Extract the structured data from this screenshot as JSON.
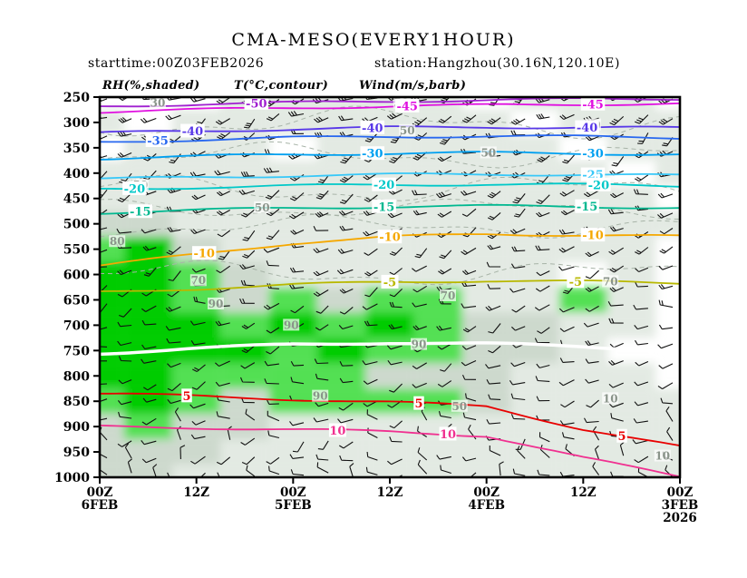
{
  "header": {
    "title": "CMA-MESO(EVERY1HOUR)",
    "starttime": "starttime:00Z03FEB2026",
    "station": "station:Hangzhou(30.16N,120.10E)"
  },
  "legend": {
    "rh": "RH(%,shaded)",
    "temp": "T(°C,contour)",
    "wind": "Wind(m/s,barb)"
  },
  "chart_data": {
    "type": "heatmap",
    "title": "CMA-MESO(EVERY1HOUR)",
    "subtitle_left": "starttime:00Z03FEB2026",
    "subtitle_right": "station:Hangzhou(30.16N,120.10E)",
    "legend_entries": [
      "RH(%,shaded)",
      "T(°C,contour)",
      "Wind(m/s,barb)"
    ],
    "y_axis": {
      "unit": "hPa",
      "min": 250,
      "max": 1000,
      "ticks": [
        250,
        300,
        350,
        400,
        450,
        500,
        550,
        600,
        650,
        700,
        750,
        800,
        850,
        900,
        950,
        1000
      ]
    },
    "x_axis": {
      "direction": "time runs right-to-left from start 00Z03FEB2026",
      "ticks": [
        {
          "time": "00Z",
          "date": "6FEB"
        },
        {
          "time": "12Z"
        },
        {
          "time": "00Z",
          "date": "5FEB"
        },
        {
          "time": "12Z"
        },
        {
          "time": "00Z",
          "date": "4FEB"
        },
        {
          "time": "12Z"
        },
        {
          "time": "00Z",
          "date": "3FEB",
          "year": "2026"
        }
      ]
    },
    "rh_percent": {
      "columns": 13,
      "pressures": [
        250,
        300,
        350,
        400,
        450,
        500,
        550,
        600,
        650,
        700,
        750,
        800,
        850,
        900,
        950,
        1000
      ],
      "grid": [
        [
          45,
          40,
          45,
          55,
          60,
          55,
          60,
          55,
          45,
          55,
          60,
          50,
          45
        ],
        [
          50,
          45,
          55,
          60,
          55,
          50,
          55,
          60,
          50,
          45,
          55,
          60,
          55
        ],
        [
          45,
          55,
          60,
          55,
          45,
          55,
          60,
          55,
          50,
          55,
          45,
          55,
          60
        ],
        [
          55,
          60,
          55,
          50,
          55,
          60,
          50,
          55,
          60,
          55,
          50,
          45,
          55
        ],
        [
          60,
          55,
          50,
          55,
          60,
          55,
          60,
          50,
          55,
          60,
          55,
          50,
          45
        ],
        [
          85,
          80,
          65,
          55,
          60,
          55,
          50,
          55,
          60,
          55,
          50,
          55,
          50
        ],
        [
          93,
          96,
          80,
          60,
          55,
          60,
          55,
          50,
          55,
          50,
          55,
          50,
          45
        ],
        [
          96,
          96,
          90,
          72,
          65,
          60,
          65,
          60,
          55,
          50,
          45,
          50,
          40
        ],
        [
          96,
          97,
          93,
          85,
          92,
          88,
          93,
          90,
          65,
          55,
          93,
          55,
          45
        ],
        [
          97,
          97,
          96,
          93,
          96,
          93,
          96,
          93,
          88,
          70,
          55,
          50,
          45
        ],
        [
          97,
          98,
          96,
          96,
          93,
          96,
          93,
          92,
          88,
          72,
          55,
          45,
          40
        ],
        [
          96,
          97,
          93,
          92,
          93,
          92,
          88,
          82,
          78,
          68,
          55,
          50,
          45
        ],
        [
          93,
          96,
          92,
          88,
          93,
          92,
          93,
          92,
          88,
          62,
          55,
          50,
          55
        ],
        [
          88,
          92,
          82,
          72,
          68,
          62,
          68,
          62,
          55,
          50,
          55,
          60,
          55
        ],
        [
          78,
          82,
          72,
          62,
          55,
          60,
          55,
          60,
          55,
          60,
          55,
          62,
          65
        ],
        [
          72,
          78,
          68,
          60,
          55,
          58,
          55,
          55,
          58,
          55,
          60,
          63,
          68
        ]
      ]
    },
    "rh_shade_levels": [
      {
        "min": 50,
        "color": "#e3eae3"
      },
      {
        "min": 70,
        "color": "#cdd9cd"
      },
      {
        "min": 90,
        "color": "#52e052"
      },
      {
        "min": 95,
        "color": "#00cc00"
      }
    ],
    "rh_contour_levels": [
      50,
      70,
      90
    ],
    "rh_labels": [
      {
        "v": 30,
        "t": 0.1,
        "p": 262
      },
      {
        "v": 50,
        "t": 0.52,
        "p": 262
      },
      {
        "v": 50,
        "t": 0.53,
        "p": 316
      },
      {
        "v": 50,
        "t": 0.85,
        "p": 305
      },
      {
        "v": 50,
        "t": 0.67,
        "p": 360
      },
      {
        "v": 50,
        "t": 0.07,
        "p": 424
      },
      {
        "v": 50,
        "t": 0.28,
        "p": 468
      },
      {
        "v": 80,
        "t": 0.03,
        "p": 535
      },
      {
        "v": 70,
        "t": 0.17,
        "p": 612
      },
      {
        "v": 70,
        "t": 0.88,
        "p": 614
      },
      {
        "v": 90,
        "t": 0.2,
        "p": 658
      },
      {
        "v": 70,
        "t": 0.6,
        "p": 642
      },
      {
        "v": 90,
        "t": 0.33,
        "p": 700
      },
      {
        "v": 90,
        "t": 0.55,
        "p": 738
      },
      {
        "v": 90,
        "t": 0.38,
        "p": 840
      },
      {
        "v": 50,
        "t": 0.62,
        "p": 860
      },
      {
        "v": 10,
        "t": 0.88,
        "p": 845
      },
      {
        "v": 10,
        "t": 0.97,
        "p": 958
      }
    ],
    "rh_contour_lines": [
      {
        "base": 300,
        "amp": 22,
        "phase": 0.5
      },
      {
        "base": 365,
        "amp": 18,
        "phase": 2.1
      },
      {
        "base": 432,
        "amp": 20,
        "phase": 4.0
      },
      {
        "base": 505,
        "amp": 16,
        "phase": 1.2
      },
      {
        "base": 470,
        "amp": 14,
        "phase": 5.1
      },
      {
        "base": 598,
        "amp": 18,
        "phase": 3.3
      }
    ],
    "temp_contours": [
      {
        "level": -50,
        "color": "#a020d0",
        "p": [
          268,
          264,
          261,
          258,
          256,
          254,
          253
        ],
        "labels": [
          0.27
        ]
      },
      {
        "level": -45,
        "color": "#e010e0",
        "p": [
          279,
          275,
          271,
          268,
          266,
          264,
          263
        ],
        "labels": [
          0.53,
          0.85
        ]
      },
      {
        "level": -40,
        "color": "#5838e8",
        "p": [
          321,
          317,
          313,
          310,
          309,
          310,
          311
        ],
        "labels": [
          0.16,
          0.47,
          0.84
        ]
      },
      {
        "level": -35,
        "color": "#2868f0",
        "p": [
          339,
          334,
          330,
          328,
          327,
          328,
          330
        ],
        "labels": [
          0.1
        ]
      },
      {
        "level": -30,
        "color": "#00a0f0",
        "p": [
          371,
          367,
          363,
          361,
          360,
          361,
          363
        ],
        "labels": [
          0.47,
          0.85
        ]
      },
      {
        "level": -25,
        "color": "#38c8f8",
        "p": [
          412,
          408,
          405,
          403,
          402,
          403,
          405
        ],
        "labels": [
          0.85
        ]
      },
      {
        "level": -20,
        "color": "#00c8c8",
        "p": [
          432,
          428,
          425,
          423,
          422,
          423,
          425
        ],
        "labels": [
          0.06,
          0.49,
          0.86
        ]
      },
      {
        "level": -15,
        "color": "#00b890",
        "p": [
          478,
          473,
          469,
          466,
          465,
          466,
          468
        ],
        "labels": [
          0.07,
          0.49,
          0.84
        ]
      },
      {
        "level": -10,
        "color": "#f5a800",
        "p": [
          583,
          560,
          538,
          526,
          520,
          522,
          525
        ],
        "labels": [
          0.18,
          0.5,
          0.85
        ]
      },
      {
        "level": -5,
        "color": "#b8b800",
        "p": [
          635,
          628,
          620,
          615,
          612,
          614,
          617
        ],
        "labels": [
          0.5,
          0.82
        ]
      },
      {
        "level": 0,
        "color": "#ffffff",
        "p": [
          755,
          746,
          738,
          734,
          737,
          742,
          750
        ],
        "labels": []
      },
      {
        "level": 5,
        "color": "#e80000",
        "p": [
          835,
          840,
          846,
          852,
          860,
          905,
          940
        ],
        "labels": [
          0.15,
          0.55,
          0.9
        ]
      },
      {
        "level": 10,
        "color": "#f03090",
        "p": [
          900,
          902,
          906,
          910,
          918,
          962,
          998
        ],
        "labels": [
          0.41,
          0.6
        ]
      }
    ],
    "wind": {
      "unit": "m/s",
      "levels": [
        {
          "p": 250,
          "speed": 22,
          "angle": 150
        },
        {
          "p": 288,
          "speed": 22,
          "angle": 152
        },
        {
          "p": 325,
          "speed": 20,
          "angle": 150
        },
        {
          "p": 362,
          "speed": 20,
          "angle": 153
        },
        {
          "p": 400,
          "speed": 18,
          "angle": 150
        },
        {
          "p": 438,
          "speed": 17,
          "angle": 152
        },
        {
          "p": 475,
          "speed": 16,
          "angle": 150
        },
        {
          "p": 512,
          "speed": 15,
          "angle": 155
        },
        {
          "p": 550,
          "speed": 14,
          "angle": 155
        },
        {
          "p": 588,
          "speed": 13,
          "angle": 158
        },
        {
          "p": 625,
          "speed": 12,
          "angle": 158
        },
        {
          "p": 662,
          "speed": 12,
          "angle": 160
        },
        {
          "p": 700,
          "speed": 11,
          "angle": 160
        },
        {
          "p": 738,
          "speed": 10,
          "angle": 162
        },
        {
          "p": 775,
          "speed": 10,
          "angle": 162
        },
        {
          "p": 812,
          "speed": 9,
          "angle": 165
        },
        {
          "p": 850,
          "speed": 8,
          "angle": 170
        },
        {
          "p": 888,
          "speed": 7,
          "angle": 180
        },
        {
          "p": 925,
          "speed": 6,
          "angle": 190
        },
        {
          "p": 962,
          "speed": 5,
          "angle": 200
        },
        {
          "p": 995,
          "speed": 5,
          "angle": 210
        }
      ]
    }
  }
}
